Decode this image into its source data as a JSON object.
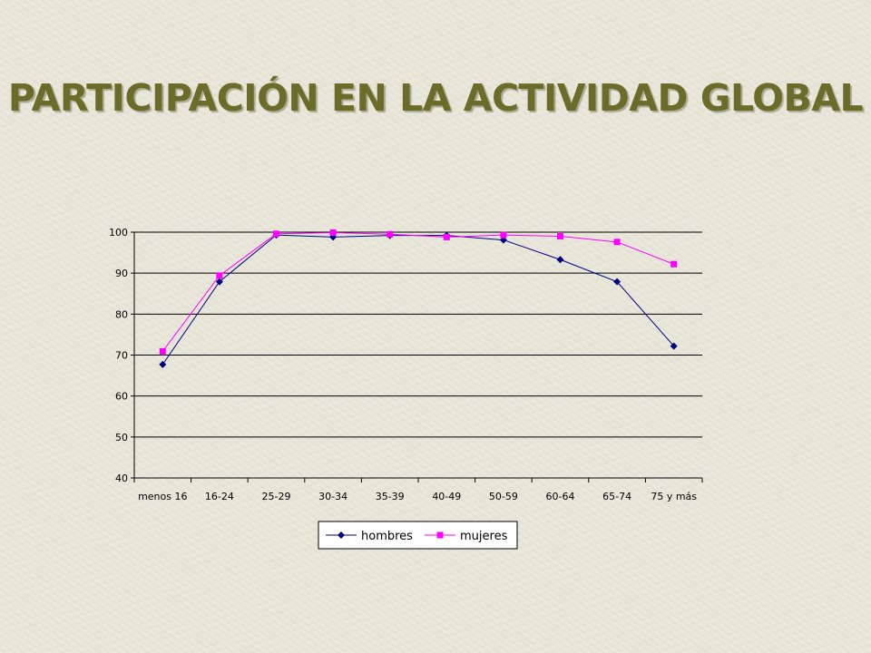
{
  "title": "PARTICIPACIÓN EN LA ACTIVIDAD GLOBAL",
  "chart_data": {
    "type": "line",
    "categories": [
      "menos 16",
      "16-24",
      "25-29",
      "30-34",
      "35-39",
      "40-49",
      "50-59",
      "60-64",
      "65-74",
      "75 y más"
    ],
    "ylim": [
      40,
      100
    ],
    "yticks": [
      40,
      50,
      60,
      70,
      80,
      90,
      100
    ],
    "grid": true,
    "legend": "bottom",
    "series": [
      {
        "name": "hombres",
        "color": "#000080",
        "marker": "diamond",
        "values": [
          67.7,
          87.9,
          99.3,
          98.8,
          99.2,
          99.2,
          98.1,
          93.3,
          87.9,
          72.2
        ]
      },
      {
        "name": "mujeres",
        "color": "#ff00ff",
        "marker": "square",
        "values": [
          70.9,
          89.4,
          99.6,
          99.9,
          99.5,
          98.8,
          99.3,
          99.0,
          97.6,
          92.2
        ]
      }
    ]
  }
}
